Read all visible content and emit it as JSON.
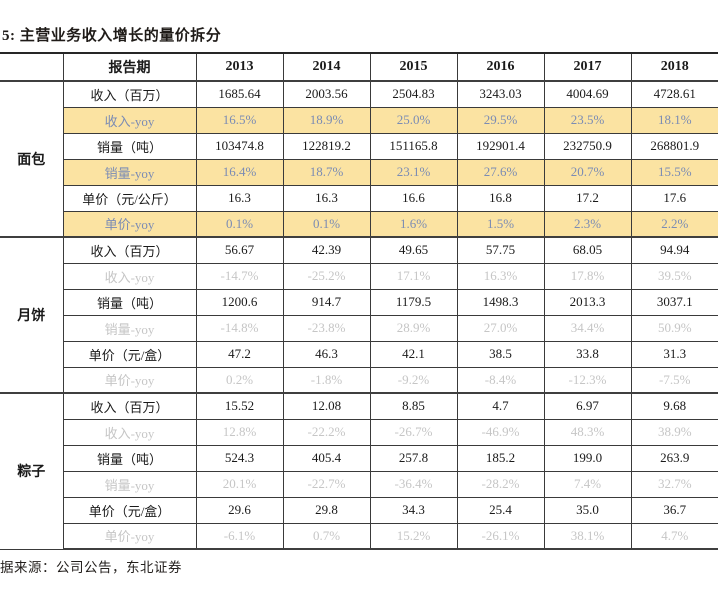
{
  "title": "5:  主营业务收入增长的量价拆分",
  "source_note": "据来源：公司公告，东北证券",
  "colors": {
    "highlight_bg": "#fbe3a2",
    "highlight_text": "#7b8cb4",
    "muted_text": "#c6c6c6",
    "body_text": "#1a1a1a",
    "border": "#3a3a3a"
  },
  "table": {
    "header": {
      "label": "报告期",
      "years": [
        "2013",
        "2014",
        "2015",
        "2016",
        "2017",
        "2018"
      ]
    },
    "sections": [
      {
        "category": "面包",
        "yoy_style": "highlight",
        "rows": [
          {
            "label": "收入（百万）",
            "type": "value",
            "values": [
              "1685.64",
              "2003.56",
              "2504.83",
              "3243.03",
              "4004.69",
              "4728.61"
            ]
          },
          {
            "label": "收入-yoy",
            "type": "yoy",
            "values": [
              "16.5%",
              "18.9%",
              "25.0%",
              "29.5%",
              "23.5%",
              "18.1%"
            ]
          },
          {
            "label": "销量（吨）",
            "type": "value",
            "values": [
              "103474.8",
              "122819.2",
              "151165.8",
              "192901.4",
              "232750.9",
              "268801.9"
            ]
          },
          {
            "label": "销量-yoy",
            "type": "yoy",
            "values": [
              "16.4%",
              "18.7%",
              "23.1%",
              "27.6%",
              "20.7%",
              "15.5%"
            ]
          },
          {
            "label": "单价（元/公斤）",
            "type": "value",
            "values": [
              "16.3",
              "16.3",
              "16.6",
              "16.8",
              "17.2",
              "17.6"
            ]
          },
          {
            "label": "单价-yoy",
            "type": "yoy",
            "values": [
              "0.1%",
              "0.1%",
              "1.6%",
              "1.5%",
              "2.3%",
              "2.2%"
            ]
          }
        ]
      },
      {
        "category": "月饼",
        "yoy_style": "muted",
        "rows": [
          {
            "label": "收入（百万）",
            "type": "value",
            "values": [
              "56.67",
              "42.39",
              "49.65",
              "57.75",
              "68.05",
              "94.94"
            ]
          },
          {
            "label": "收入-yoy",
            "type": "yoy",
            "values": [
              "-14.7%",
              "-25.2%",
              "17.1%",
              "16.3%",
              "17.8%",
              "39.5%"
            ]
          },
          {
            "label": "销量（吨）",
            "type": "value",
            "values": [
              "1200.6",
              "914.7",
              "1179.5",
              "1498.3",
              "2013.3",
              "3037.1"
            ]
          },
          {
            "label": "销量-yoy",
            "type": "yoy",
            "values": [
              "-14.8%",
              "-23.8%",
              "28.9%",
              "27.0%",
              "34.4%",
              "50.9%"
            ]
          },
          {
            "label": "单价（元/盒）",
            "type": "value",
            "values": [
              "47.2",
              "46.3",
              "42.1",
              "38.5",
              "33.8",
              "31.3"
            ]
          },
          {
            "label": "单价-yoy",
            "type": "yoy",
            "values": [
              "0.2%",
              "-1.8%",
              "-9.2%",
              "-8.4%",
              "-12.3%",
              "-7.5%"
            ]
          }
        ]
      },
      {
        "category": "粽子",
        "yoy_style": "muted",
        "rows": [
          {
            "label": "收入（百万）",
            "type": "value",
            "values": [
              "15.52",
              "12.08",
              "8.85",
              "4.7",
              "6.97",
              "9.68"
            ]
          },
          {
            "label": "收入-yoy",
            "type": "yoy",
            "values": [
              "12.8%",
              "-22.2%",
              "-26.7%",
              "-46.9%",
              "48.3%",
              "38.9%"
            ]
          },
          {
            "label": "销量（吨）",
            "type": "value",
            "values": [
              "524.3",
              "405.4",
              "257.8",
              "185.2",
              "199.0",
              "263.9"
            ]
          },
          {
            "label": "销量-yoy",
            "type": "yoy",
            "values": [
              "20.1%",
              "-22.7%",
              "-36.4%",
              "-28.2%",
              "7.4%",
              "32.7%"
            ]
          },
          {
            "label": "单价（元/盒）",
            "type": "value",
            "values": [
              "29.6",
              "29.8",
              "34.3",
              "25.4",
              "35.0",
              "36.7"
            ]
          },
          {
            "label": "单价-yoy",
            "type": "yoy",
            "values": [
              "-6.1%",
              "0.7%",
              "15.2%",
              "-26.1%",
              "38.1%",
              "4.7%"
            ]
          }
        ]
      }
    ]
  }
}
